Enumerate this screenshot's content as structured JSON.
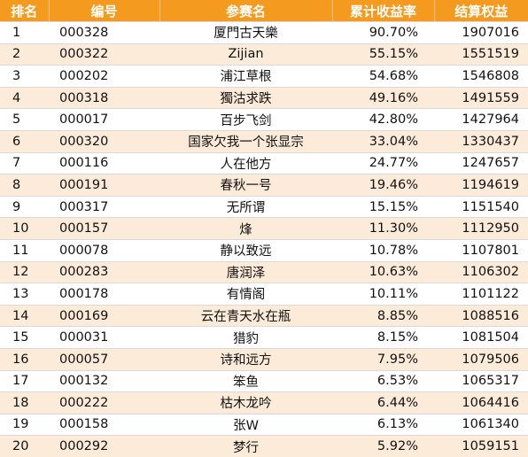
{
  "table": {
    "headers": {
      "rank": "排名",
      "id": "编号",
      "name": "参赛名",
      "return": "累计收益率",
      "equity": "结算权益"
    },
    "rows": [
      {
        "rank": "1",
        "id": "000328",
        "name": "厦門古天樂",
        "return": "90.70%",
        "equity": "1907016"
      },
      {
        "rank": "2",
        "id": "000322",
        "name": "Zijian",
        "return": "55.15%",
        "equity": "1551519"
      },
      {
        "rank": "3",
        "id": "000202",
        "name": "浦江草根",
        "return": "54.68%",
        "equity": "1546808"
      },
      {
        "rank": "4",
        "id": "000318",
        "name": "獨沽求跌",
        "return": "49.16%",
        "equity": "1491559"
      },
      {
        "rank": "5",
        "id": "000017",
        "name": "百步飞剑",
        "return": "42.80%",
        "equity": "1427964"
      },
      {
        "rank": "6",
        "id": "000320",
        "name": "国家欠我一个张显宗",
        "return": "33.04%",
        "equity": "1330437"
      },
      {
        "rank": "7",
        "id": "000116",
        "name": "人在他方",
        "return": "24.77%",
        "equity": "1247657"
      },
      {
        "rank": "8",
        "id": "000191",
        "name": "春秋一号",
        "return": "19.46%",
        "equity": "1194619"
      },
      {
        "rank": "9",
        "id": "000317",
        "name": "无所谓",
        "return": "15.15%",
        "equity": "1151540"
      },
      {
        "rank": "10",
        "id": "000157",
        "name": "烽",
        "return": "11.30%",
        "equity": "1112950"
      },
      {
        "rank": "11",
        "id": "000078",
        "name": "静以致远",
        "return": "10.78%",
        "equity": "1107801"
      },
      {
        "rank": "12",
        "id": "000283",
        "name": "唐润泽",
        "return": "10.63%",
        "equity": "1106302"
      },
      {
        "rank": "13",
        "id": "000178",
        "name": "有情阁",
        "return": "10.11%",
        "equity": "1101122"
      },
      {
        "rank": "14",
        "id": "000169",
        "name": "云在青天水在瓶",
        "return": "8.85%",
        "equity": "1088516"
      },
      {
        "rank": "15",
        "id": "000031",
        "name": "猎豹",
        "return": "8.15%",
        "equity": "1081504"
      },
      {
        "rank": "16",
        "id": "000057",
        "name": "诗和远方",
        "return": "7.95%",
        "equity": "1079506"
      },
      {
        "rank": "17",
        "id": "000132",
        "name": "笨鱼",
        "return": "6.53%",
        "equity": "1065317"
      },
      {
        "rank": "18",
        "id": "000222",
        "name": "枯木龙吟",
        "return": "6.44%",
        "equity": "1064416"
      },
      {
        "rank": "19",
        "id": "000158",
        "name": "张W",
        "return": "6.13%",
        "equity": "1061340"
      },
      {
        "rank": "20",
        "id": "000292",
        "name": "梦行",
        "return": "5.92%",
        "equity": "1059151"
      }
    ]
  }
}
